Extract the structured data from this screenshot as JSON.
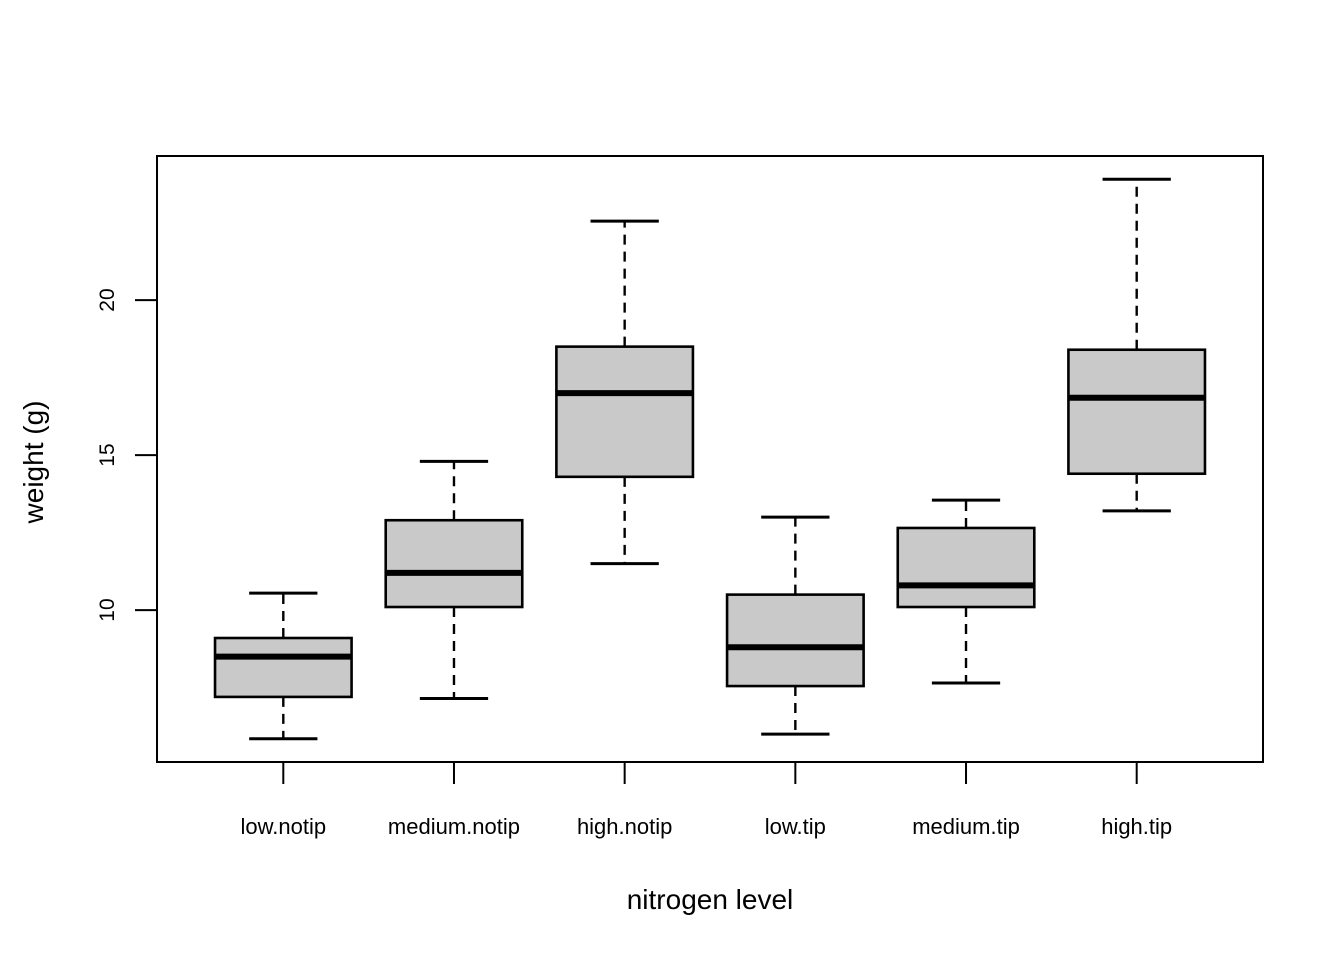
{
  "chart_data": {
    "type": "boxplot",
    "title": "",
    "xlabel": "nitrogen level",
    "ylabel": "weight (g)",
    "categories": [
      "low.notip",
      "medium.notip",
      "high.notip",
      "low.tip",
      "medium.tip",
      "high.tip"
    ],
    "y_ticks": [
      {
        "value": 10,
        "label": "10"
      },
      {
        "value": 15,
        "label": "15"
      },
      {
        "value": 20,
        "label": "20"
      }
    ],
    "ylim": [
      5.1,
      24.65
    ],
    "boxes": [
      {
        "category": "low.notip",
        "whisker_low": 5.85,
        "q1": 7.2,
        "median": 8.5,
        "q3": 9.1,
        "whisker_high": 10.55
      },
      {
        "category": "medium.notip",
        "whisker_low": 7.15,
        "q1": 10.1,
        "median": 11.2,
        "q3": 12.9,
        "whisker_high": 14.8
      },
      {
        "category": "high.notip",
        "whisker_low": 11.5,
        "q1": 14.3,
        "median": 17.0,
        "q3": 18.5,
        "whisker_high": 22.55
      },
      {
        "category": "low.tip",
        "whisker_low": 6.0,
        "q1": 7.55,
        "median": 8.8,
        "q3": 10.5,
        "whisker_high": 13.0
      },
      {
        "category": "medium.tip",
        "whisker_low": 7.65,
        "q1": 10.1,
        "median": 10.8,
        "q3": 12.65,
        "whisker_high": 13.55
      },
      {
        "category": "high.tip",
        "whisker_low": 13.2,
        "q1": 14.4,
        "median": 16.85,
        "q3": 18.4,
        "whisker_high": 23.9
      }
    ],
    "colors": {
      "box_fill": "#C9C9C9",
      "stroke": "#000000",
      "background": "#FFFFFF"
    },
    "grid": false,
    "legend": false
  }
}
